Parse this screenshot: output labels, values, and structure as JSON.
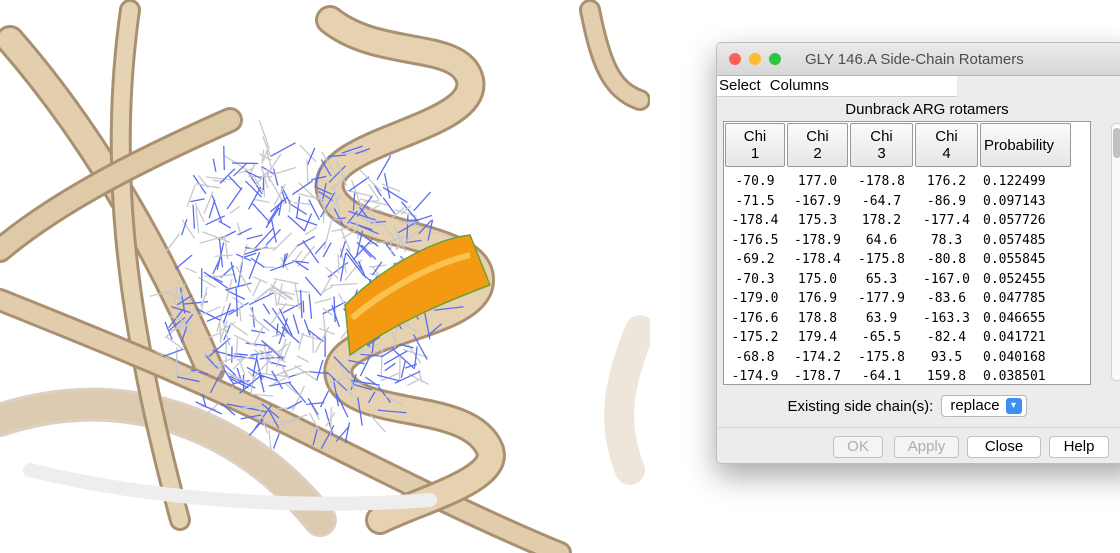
{
  "window": {
    "title": "GLY 146.A Side-Chain Rotamers",
    "menu": [
      "Select",
      "Columns"
    ],
    "heading": "Dunbrack ARG rotamers",
    "table": {
      "columns": [
        "Chi\n1",
        "Chi\n2",
        "Chi\n3",
        "Chi\n4",
        "Probability"
      ],
      "rows": [
        [
          "-70.9",
          "177.0",
          "-178.8",
          "176.2",
          "0.122499"
        ],
        [
          "-71.5",
          "-167.9",
          "-64.7",
          "-86.9",
          "0.097143"
        ],
        [
          "-178.4",
          "175.3",
          "178.2",
          "-177.4",
          "0.057726"
        ],
        [
          "-176.5",
          "-178.9",
          "64.6",
          "78.3",
          "0.057485"
        ],
        [
          "-69.2",
          "-178.4",
          "-175.8",
          "-80.8",
          "0.055845"
        ],
        [
          "-70.3",
          "175.0",
          "65.3",
          "-167.0",
          "0.052455"
        ],
        [
          "-179.0",
          "176.9",
          "-177.9",
          "-83.6",
          "0.047785"
        ],
        [
          "-176.6",
          "178.8",
          "63.9",
          "-163.3",
          "0.046655"
        ],
        [
          "-175.2",
          "179.4",
          "-65.5",
          "-82.4",
          "0.041721"
        ],
        [
          "-68.8",
          "-174.2",
          "-175.8",
          "93.5",
          "0.040168"
        ],
        [
          "-174.9",
          "-178.7",
          "-64.1",
          "159.8",
          "0.038501"
        ]
      ]
    },
    "option_label": "Existing side chain(s):",
    "option_value": "replace",
    "buttons": [
      "OK",
      "Apply",
      "Close",
      "Help"
    ]
  }
}
